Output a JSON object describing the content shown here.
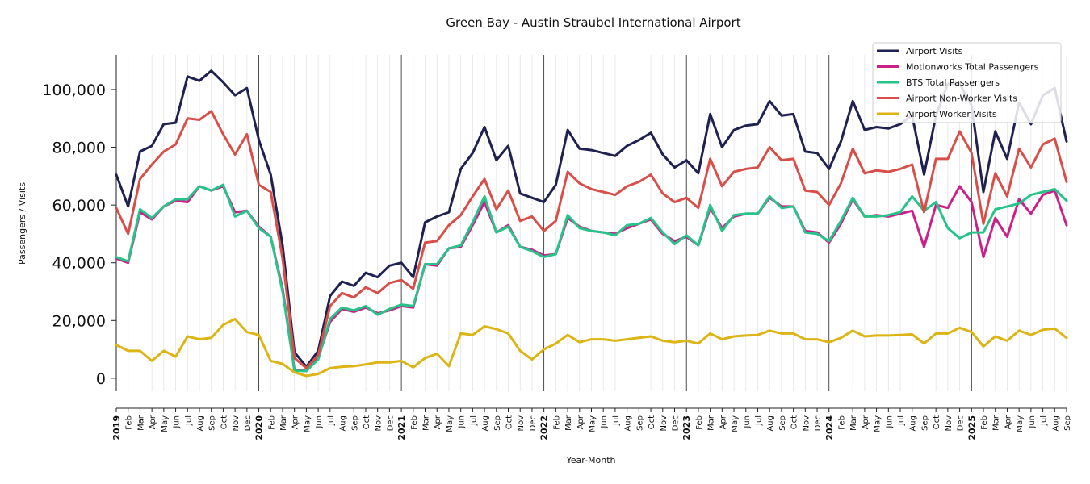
{
  "chart_data": {
    "type": "line",
    "title": "Green Bay - Austin Straubel International Airport",
    "xlabel": "Year-Month",
    "ylabel": "Passengers / Visits",
    "ylim": [
      -4500,
      112000
    ],
    "yticks": [
      0,
      20000,
      40000,
      60000,
      80000,
      100000
    ],
    "ytick_labels": [
      "0",
      "20,000",
      "40,000",
      "60,000",
      "80,000",
      "100,000"
    ],
    "grid": "vertical monthly gridlines with year separator lines",
    "legend_position": "top-right",
    "x": [
      "2019",
      "Feb",
      "Mar",
      "Apr",
      "May",
      "Jun",
      "Jul",
      "Aug",
      "Sep",
      "Oct",
      "Nov",
      "Dec",
      "2020",
      "Feb",
      "Mar",
      "Apr",
      "May",
      "Jun",
      "Jul",
      "Aug",
      "Sep",
      "Oct",
      "Nov",
      "Dec",
      "2021",
      "Feb",
      "Mar",
      "Apr",
      "May",
      "Jun",
      "Jul",
      "Aug",
      "Sep",
      "Oct",
      "Nov",
      "Dec",
      "2022",
      "Feb",
      "Mar",
      "Apr",
      "May",
      "Jun",
      "Jul",
      "Aug",
      "Sep",
      "Oct",
      "Nov",
      "Dec",
      "2023",
      "Feb",
      "Mar",
      "Apr",
      "May",
      "Jun",
      "Jul",
      "Aug",
      "Sep",
      "Oct",
      "Nov",
      "Dec",
      "2024",
      "Feb",
      "Mar",
      "Apr",
      "May",
      "Jun",
      "Jul",
      "Aug",
      "Sep",
      "Oct",
      "Nov",
      "Dec",
      "2025",
      "Feb",
      "Mar",
      "Apr",
      "May",
      "Jun",
      "Jul",
      "Aug",
      "Sep"
    ],
    "year_ticks": [
      "2019",
      "2020",
      "2021",
      "2022",
      "2023",
      "2024",
      "2025"
    ],
    "series": [
      {
        "name": "Airport Visits",
        "color": "#1f2150",
        "values": [
          70500,
          59500,
          78500,
          80500,
          88000,
          88500,
          104500,
          103000,
          106500,
          102500,
          98000,
          100500,
          82500,
          70500,
          46000,
          9000,
          4000,
          9500,
          28500,
          33500,
          32000,
          36500,
          35000,
          39000,
          40000,
          35000,
          54000,
          56000,
          57500,
          72500,
          78000,
          87000,
          75500,
          80500,
          64000,
          62500,
          61000,
          67000,
          86000,
          79500,
          79000,
          78000,
          77000,
          80500,
          82500,
          85000,
          77500,
          73000,
          75500,
          71000,
          91500,
          80000,
          86000,
          87500,
          88000,
          96000,
          91000,
          91500,
          78500,
          78000,
          72500,
          82000,
          96000,
          86000,
          87000,
          86500,
          88000,
          91000,
          70500,
          91000,
          102000,
          102000,
          94500,
          64500,
          85500,
          76000,
          95500,
          88000,
          98000,
          100500,
          82000
        ]
      },
      {
        "name": "Motionworks Total Passengers",
        "color": "#cc1f8a",
        "values": [
          41500,
          40000,
          57500,
          55000,
          59500,
          61500,
          61000,
          66500,
          65000,
          66500,
          57500,
          58000,
          52500,
          49000,
          31000,
          3000,
          2500,
          7000,
          19500,
          24000,
          23000,
          24500,
          22500,
          23500,
          25000,
          24500,
          39500,
          39000,
          45000,
          45500,
          53000,
          61000,
          50500,
          53000,
          45500,
          44500,
          42500,
          43000,
          55500,
          52500,
          51000,
          50500,
          50000,
          52000,
          53500,
          55000,
          50000,
          47500,
          49000,
          46000,
          59000,
          52000,
          56000,
          57000,
          57000,
          62500,
          59500,
          59500,
          51000,
          50500,
          47000,
          53500,
          62000,
          56000,
          56500,
          56000,
          57000,
          58000,
          45500,
          60000,
          59000,
          66500,
          61000,
          42000,
          55500,
          49000,
          62000,
          57000,
          63500,
          65000,
          53000
        ]
      },
      {
        "name": "BTS Total Passengers",
        "color": "#27c48a",
        "values": [
          42000,
          40500,
          58500,
          55500,
          59500,
          62000,
          62000,
          66500,
          65000,
          67000,
          56000,
          58000,
          52000,
          49000,
          30000,
          2500,
          2500,
          6500,
          20500,
          24500,
          23500,
          25000,
          22000,
          24000,
          25500,
          25000,
          39500,
          39500,
          45000,
          46000,
          54000,
          63000,
          50500,
          52500,
          45500,
          44000,
          42000,
          43000,
          56500,
          52000,
          51000,
          50500,
          49500,
          53000,
          53500,
          55500,
          50500,
          46500,
          49500,
          46000,
          60000,
          51000,
          56500,
          57000,
          57000,
          63000,
          59000,
          59500,
          50500,
          50000,
          47500,
          54500,
          62500,
          56000,
          56000,
          56500,
          57500,
          63000,
          58000,
          61000,
          52000,
          48500,
          50500,
          50500,
          58500,
          59500,
          60500,
          63500,
          64500,
          65500,
          61500
        ]
      },
      {
        "name": "Airport Non-Worker Visits",
        "color": "#d84f4a",
        "values": [
          59000,
          50000,
          69000,
          74000,
          78500,
          81000,
          90000,
          89500,
          92500,
          84500,
          77500,
          84500,
          67000,
          64500,
          41500,
          7000,
          3500,
          8000,
          25000,
          29500,
          28000,
          31500,
          29500,
          33000,
          34000,
          31000,
          47000,
          47500,
          53000,
          56500,
          63000,
          69000,
          58500,
          65000,
          54500,
          56000,
          51000,
          54500,
          71500,
          67500,
          65500,
          64500,
          63500,
          66500,
          68000,
          70500,
          64000,
          61000,
          62500,
          59000,
          76000,
          66500,
          71500,
          72500,
          73000,
          80000,
          75500,
          76000,
          65000,
          64500,
          60000,
          67500,
          79500,
          71000,
          72000,
          71500,
          72500,
          74000,
          57500,
          76000,
          76000,
          85500,
          78000,
          53500,
          71000,
          63000,
          79500,
          73000,
          81000,
          83000,
          68000
        ]
      },
      {
        "name": "Airport Worker Visits",
        "color": "#dcb514",
        "values": [
          11500,
          9500,
          9500,
          6000,
          9500,
          7500,
          14500,
          13500,
          14000,
          18500,
          20500,
          16000,
          15000,
          6000,
          5000,
          2000,
          800,
          1500,
          3500,
          4000,
          4200,
          4800,
          5500,
          5500,
          6000,
          3800,
          7000,
          8500,
          4200,
          15500,
          15000,
          18000,
          17000,
          15500,
          9500,
          6500,
          10000,
          12000,
          15000,
          12500,
          13500,
          13500,
          13000,
          13500,
          14000,
          14500,
          13000,
          12500,
          13000,
          12000,
          15500,
          13500,
          14500,
          14800,
          15000,
          16500,
          15500,
          15500,
          13500,
          13500,
          12500,
          14000,
          16500,
          14500,
          14800,
          14800,
          15000,
          15200,
          12000,
          15500,
          15500,
          17500,
          16000,
          11000,
          14500,
          13000,
          16500,
          15000,
          16800,
          17200,
          14000
        ]
      }
    ]
  }
}
